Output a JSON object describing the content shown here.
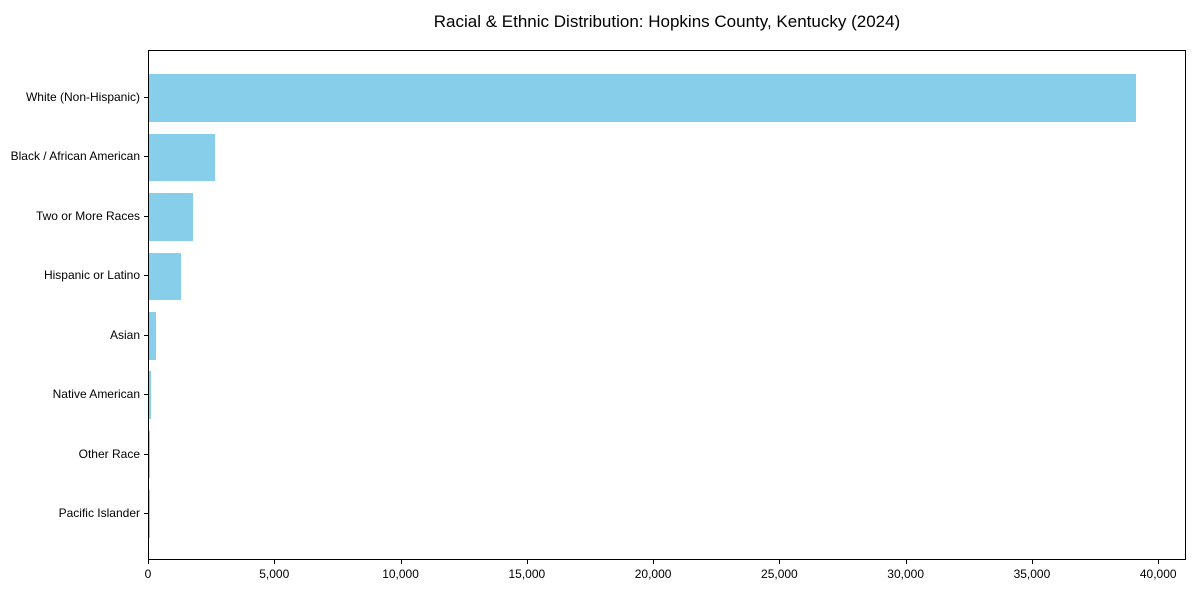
{
  "title": "Racial & Ethnic Distribution: Hopkins County, Kentucky (2024)",
  "chart_data": {
    "type": "bar",
    "orientation": "horizontal",
    "title": "Racial & Ethnic Distribution: Hopkins County, Kentucky (2024)",
    "xlabel": "",
    "ylabel": "",
    "categories": [
      "White (Non-Hispanic)",
      "Black / African American",
      "Two or More Races",
      "Hispanic or Latino",
      "Asian",
      "Native American",
      "Other Race",
      "Pacific Islander"
    ],
    "values": [
      39100,
      2600,
      1730,
      1260,
      290,
      60,
      25,
      10
    ],
    "xlim": [
      0,
      41100
    ],
    "x_ticks": [
      0,
      5000,
      10000,
      15000,
      20000,
      25000,
      30000,
      35000,
      40000
    ],
    "x_tick_labels": [
      "0",
      "5,000",
      "10,000",
      "15,000",
      "20,000",
      "25,000",
      "30,000",
      "35,000",
      "40,000"
    ],
    "bar_color": "#87CEEB",
    "background_color": "#FFFFFF",
    "spine_color": "#000000",
    "grid": false,
    "legend": null
  }
}
